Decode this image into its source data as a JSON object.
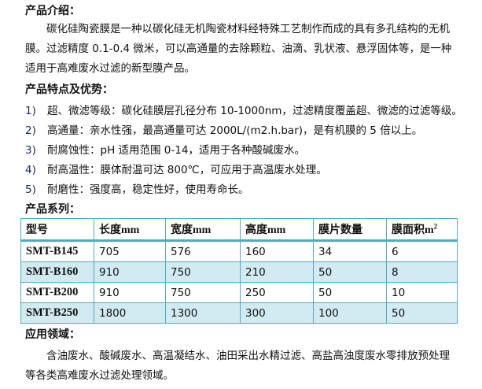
{
  "intro": {
    "heading": "产品介绍：",
    "text": "碳化硅陶瓷膜是一种以碳化硅无机陶瓷材料经特殊工艺制作而成的具有多孔结构的无机膜。过滤精度 0.1-0.4 微米，可以高通量的去除颗粒、油滴、乳状液、悬浮固体等，是一种适用于高难废水过滤的新型膜产品。"
  },
  "features": {
    "heading": "产品特点及优势：",
    "items": [
      {
        "num": "1)",
        "text": "超、微滤等级：碳化硅膜层孔径分布 10-1000nm，过滤精度覆盖超、微滤的过滤等级。"
      },
      {
        "num": "2)",
        "text": "高通量：亲水性强，最高通量可达 2000L/(m2.h.bar)，是有机膜的 5 倍以上。"
      },
      {
        "num": "3)",
        "text": "耐腐蚀性：pH 适用范围 0-14，适用于各种酸碱废水。"
      },
      {
        "num": "4)",
        "text": "耐高温性：膜体耐温可达 800℃，可应用于高温废水处理。"
      },
      {
        "num": "5)",
        "text": "耐磨性：强度高，稳定性好，使用寿命长。"
      }
    ]
  },
  "series": {
    "heading": "产品系列：",
    "headers": [
      {
        "cn": "型号",
        "unit": ""
      },
      {
        "cn": "长度",
        "unit": "mm"
      },
      {
        "cn": "宽度",
        "unit": "mm"
      },
      {
        "cn": "高度",
        "unit": "mm"
      },
      {
        "cn": "膜片数量",
        "unit": ""
      },
      {
        "cn": "膜面积",
        "unit": "m",
        "sup": "2"
      }
    ],
    "rows": [
      [
        "SMT-B145",
        "705",
        "576",
        "160",
        "34",
        "6"
      ],
      [
        "SMT-B160",
        "910",
        "750",
        "210",
        "50",
        "8"
      ],
      [
        "SMT-B200",
        "910",
        "750",
        "250",
        "50",
        "10"
      ],
      [
        "SMT-B250",
        "1800",
        "1300",
        "300",
        "100",
        "50"
      ]
    ]
  },
  "applications": {
    "heading": "应用领域：",
    "text": "含油废水、酸碱废水、高温凝结水、油田采出水精过滤、高盐高浊度废水零排放预处理等各类高难废水过滤处理领域。"
  },
  "colors": {
    "table_border": "#4bacc6",
    "alt_row": "#d2eaf1"
  }
}
